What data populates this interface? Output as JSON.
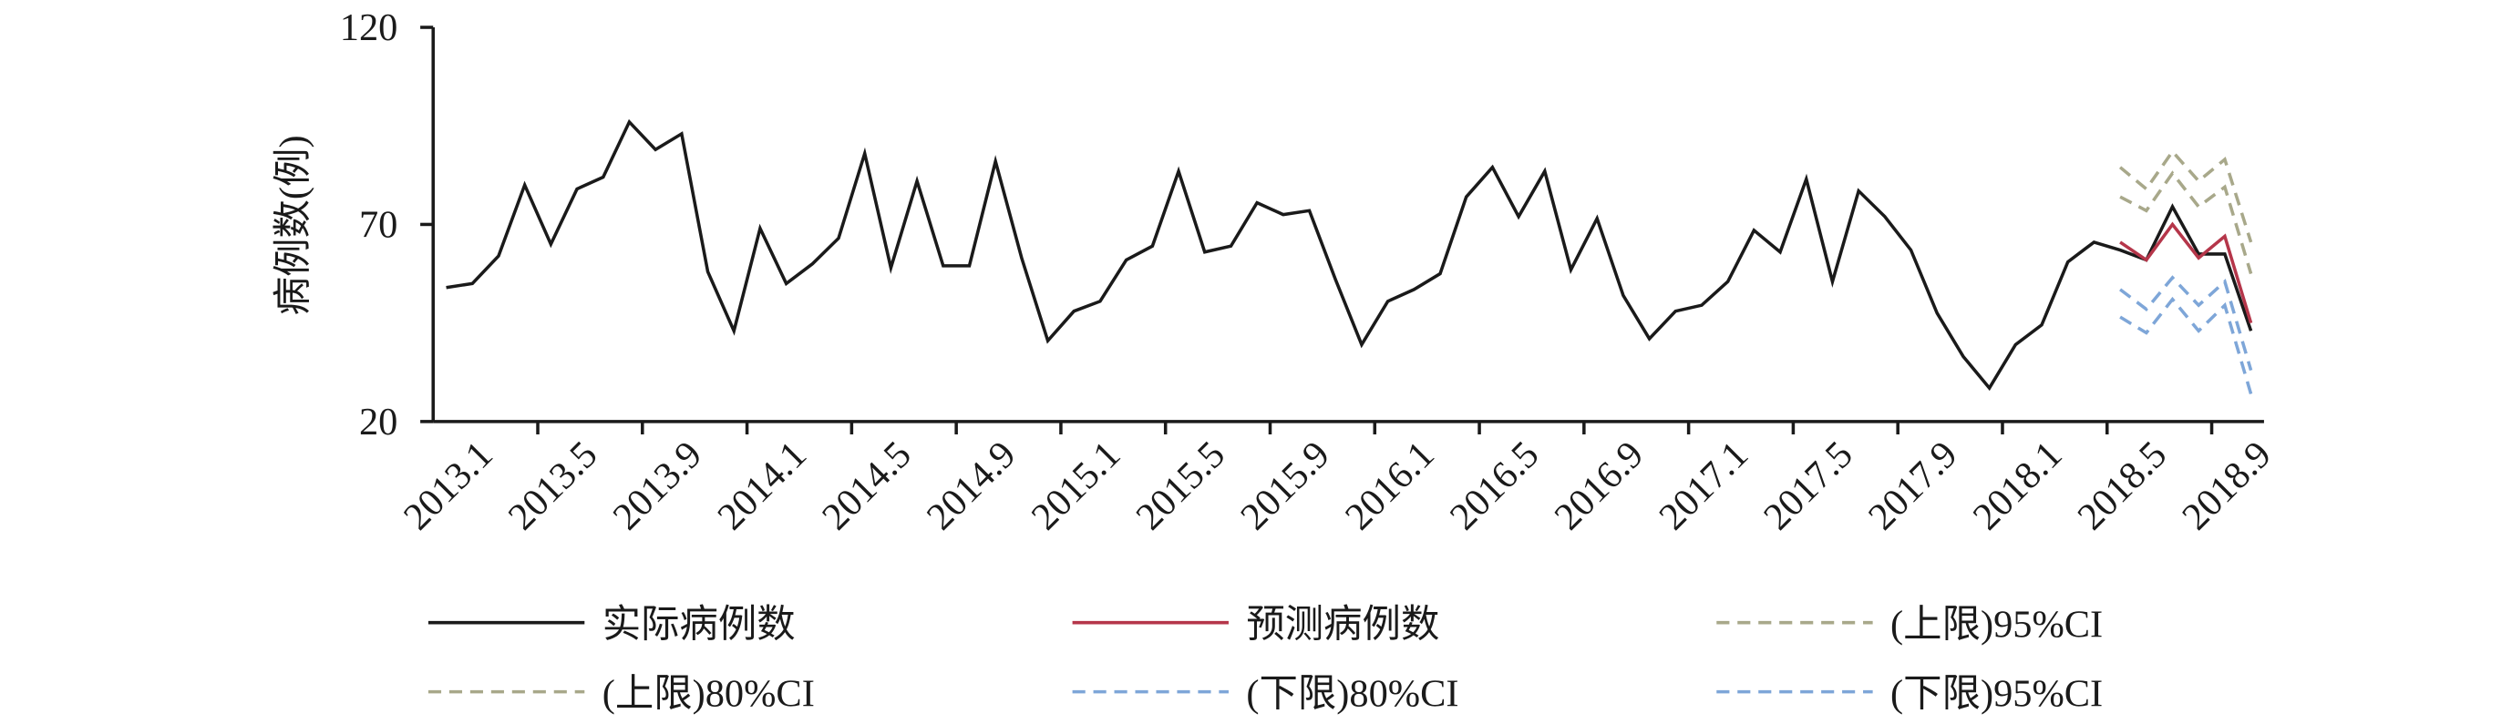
{
  "chart_data": {
    "type": "line",
    "ylabel": "病例数(例)",
    "categories": [
      "2013.1",
      null,
      null,
      null,
      "2013.5",
      null,
      null,
      null,
      "2013.9",
      null,
      null,
      null,
      "2014.1",
      null,
      null,
      null,
      "2014.5",
      null,
      null,
      null,
      "2014.9",
      null,
      null,
      null,
      "2015.1",
      null,
      null,
      null,
      "2015.5",
      null,
      null,
      null,
      "2015.9",
      null,
      null,
      null,
      "2016.1",
      null,
      null,
      null,
      "2016.5",
      null,
      null,
      null,
      "2016.9",
      null,
      null,
      null,
      "2017.1",
      null,
      null,
      null,
      "2017.5",
      null,
      null,
      null,
      "2017.9",
      null,
      null,
      null,
      "2018.1",
      null,
      null,
      null,
      "2018.5",
      null,
      null,
      null,
      "2018.9",
      null
    ],
    "ylim": [
      20,
      120
    ],
    "yticks": [
      20,
      70,
      120
    ],
    "series": [
      {
        "name": "实际病例数",
        "color": "#1a1a1a",
        "line_style": "solid",
        "values": [
          54,
          55,
          62,
          80,
          65,
          79,
          82,
          96,
          89,
          93,
          58,
          43,
          69,
          55,
          60,
          66.5,
          88,
          59,
          81,
          59.5,
          59.5,
          86,
          61.5,
          40.5,
          48,
          50.5,
          61,
          64.5,
          83.5,
          63,
          64.5,
          75.5,
          72.5,
          73.5,
          56,
          39.5,
          50.5,
          53.5,
          57.5,
          77,
          84.5,
          72,
          83.5,
          58.5,
          71.5,
          52,
          41,
          48,
          49.5,
          55.5,
          68.5,
          63,
          81.5,
          55.5,
          78.5,
          72,
          63.5,
          47.5,
          36.5,
          28.5,
          39.5,
          44.5,
          60.5,
          65.5,
          63.5,
          61,
          74.5,
          62.5,
          62.5,
          43
        ]
      },
      {
        "name": "预测病例数",
        "color": "#b5364a",
        "line_style": "solid",
        "values": [
          null,
          null,
          null,
          null,
          null,
          null,
          null,
          null,
          null,
          null,
          null,
          null,
          null,
          null,
          null,
          null,
          null,
          null,
          null,
          null,
          null,
          null,
          null,
          null,
          null,
          null,
          null,
          null,
          null,
          null,
          null,
          null,
          null,
          null,
          null,
          null,
          null,
          null,
          null,
          null,
          null,
          null,
          null,
          null,
          null,
          null,
          null,
          null,
          null,
          null,
          null,
          null,
          null,
          null,
          null,
          null,
          null,
          null,
          null,
          null,
          null,
          null,
          null,
          null,
          65.5,
          61,
          70,
          61.5,
          67,
          45
        ]
      },
      {
        "name": "(上限)95%CI",
        "color": "#a8a88a",
        "line_style": "dashed",
        "values": [
          null,
          null,
          null,
          null,
          null,
          null,
          null,
          null,
          null,
          null,
          null,
          null,
          null,
          null,
          null,
          null,
          null,
          null,
          null,
          null,
          null,
          null,
          null,
          null,
          null,
          null,
          null,
          null,
          null,
          null,
          null,
          null,
          null,
          null,
          null,
          null,
          null,
          null,
          null,
          null,
          null,
          null,
          null,
          null,
          null,
          null,
          null,
          null,
          null,
          null,
          null,
          null,
          null,
          null,
          null,
          null,
          null,
          null,
          null,
          null,
          null,
          null,
          null,
          null,
          84.5,
          79,
          88.5,
          81,
          86.5,
          65.5
        ]
      },
      {
        "name": "(上限)80%CI",
        "color": "#a8a88a",
        "line_style": "dashed",
        "values": [
          null,
          null,
          null,
          null,
          null,
          null,
          null,
          null,
          null,
          null,
          null,
          null,
          null,
          null,
          null,
          null,
          null,
          null,
          null,
          null,
          null,
          null,
          null,
          null,
          null,
          null,
          null,
          null,
          null,
          null,
          null,
          null,
          null,
          null,
          null,
          null,
          null,
          null,
          null,
          null,
          null,
          null,
          null,
          null,
          null,
          null,
          null,
          null,
          null,
          null,
          null,
          null,
          null,
          null,
          null,
          null,
          null,
          null,
          null,
          null,
          null,
          null,
          null,
          null,
          77,
          73.5,
          83,
          74.5,
          79.5,
          57.5
        ]
      },
      {
        "name": "(下限)80%CI",
        "color": "#7ea6d8",
        "line_style": "dashed",
        "values": [
          null,
          null,
          null,
          null,
          null,
          null,
          null,
          null,
          null,
          null,
          null,
          null,
          null,
          null,
          null,
          null,
          null,
          null,
          null,
          null,
          null,
          null,
          null,
          null,
          null,
          null,
          null,
          null,
          null,
          null,
          null,
          null,
          null,
          null,
          null,
          null,
          null,
          null,
          null,
          null,
          null,
          null,
          null,
          null,
          null,
          null,
          null,
          null,
          null,
          null,
          null,
          null,
          null,
          null,
          null,
          null,
          null,
          null,
          null,
          null,
          null,
          null,
          null,
          null,
          53.5,
          48.5,
          56.5,
          49.5,
          55.5,
          33
        ]
      },
      {
        "name": "(下限)95%CI",
        "color": "#7ea6d8",
        "line_style": "dashed",
        "values": [
          null,
          null,
          null,
          null,
          null,
          null,
          null,
          null,
          null,
          null,
          null,
          null,
          null,
          null,
          null,
          null,
          null,
          null,
          null,
          null,
          null,
          null,
          null,
          null,
          null,
          null,
          null,
          null,
          null,
          null,
          null,
          null,
          null,
          null,
          null,
          null,
          null,
          null,
          null,
          null,
          null,
          null,
          null,
          null,
          null,
          null,
          null,
          null,
          null,
          null,
          null,
          null,
          null,
          null,
          null,
          null,
          null,
          null,
          null,
          null,
          null,
          null,
          null,
          null,
          46.5,
          42.5,
          51,
          43,
          49.5,
          27
        ]
      }
    ]
  }
}
